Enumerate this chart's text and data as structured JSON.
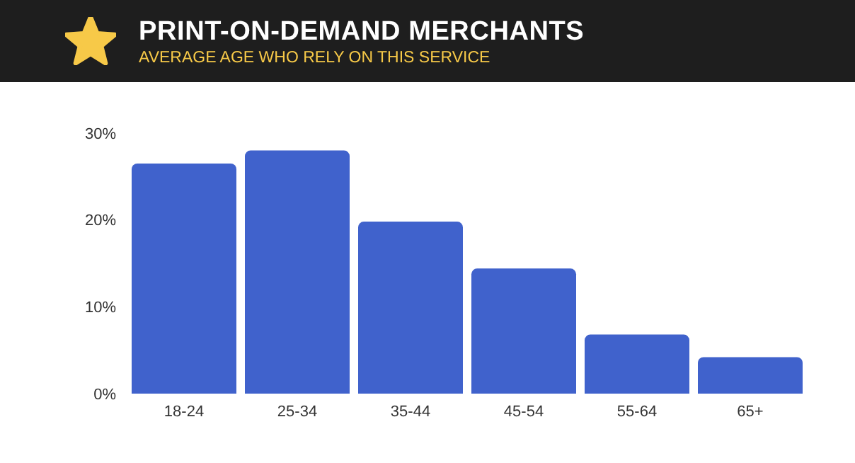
{
  "chart_data": {
    "type": "bar",
    "title": "PRINT-ON-DEMAND MERCHANTS",
    "subtitle": "AVERAGE AGE WHO RELY ON THIS SERVICE",
    "categories": [
      "18-24",
      "25-34",
      "35-44",
      "45-54",
      "55-64",
      "65+"
    ],
    "values": [
      26.5,
      28,
      19.8,
      14.4,
      6.8,
      4.2
    ],
    "color": "#4062cc",
    "ylim": [
      0,
      30
    ],
    "yticks": [
      {
        "value": 0,
        "label": "0%"
      },
      {
        "value": 10,
        "label": "10%"
      },
      {
        "value": 20,
        "label": "20%"
      },
      {
        "value": 30,
        "label": "30%"
      }
    ],
    "grid": false,
    "legend": false
  }
}
